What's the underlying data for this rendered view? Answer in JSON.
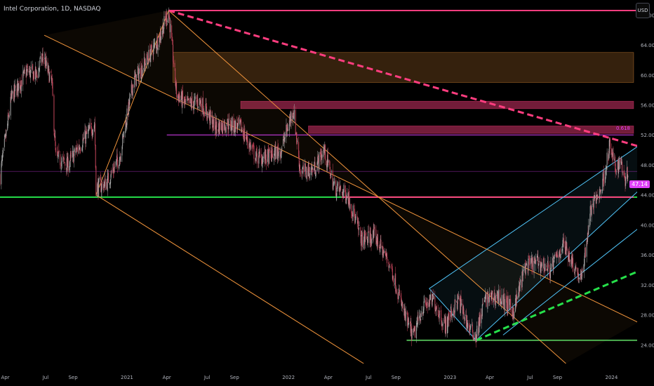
{
  "header": {
    "title": "Intel Corporation, 1D, NASDAQ",
    "currency_button": "USD"
  },
  "colors": {
    "background": "#000000",
    "up": "#a8a8a8",
    "down": "#c2455a",
    "orange": "#f0943c",
    "pink": "#ff3d7f",
    "green": "#4caf50",
    "bright_green": "#26e04a",
    "cyan": "#4fc3f7",
    "magenta": "#e040fb",
    "axis_text": "#b2b5be"
  },
  "chart_data": {
    "type": "candlestick",
    "title": "Intel Corporation, 1D, NASDAQ",
    "x_axis": {
      "start": "2020-03-20",
      "end": "2024-02-28",
      "tick_labels": [
        {
          "label": "Apr",
          "date": "2020-04-01"
        },
        {
          "label": "Jul",
          "date": "2020-07-01"
        },
        {
          "label": "Sep",
          "date": "2020-09-01"
        },
        {
          "label": "2021",
          "date": "2021-01-01"
        },
        {
          "label": "Apr",
          "date": "2021-04-01"
        },
        {
          "label": "Jul",
          "date": "2021-07-01"
        },
        {
          "label": "Sep",
          "date": "2021-09-01"
        },
        {
          "label": "2022",
          "date": "2022-01-01"
        },
        {
          "label": "Apr",
          "date": "2022-04-01"
        },
        {
          "label": "Jul",
          "date": "2022-07-01"
        },
        {
          "label": "Sep",
          "date": "2022-09-01"
        },
        {
          "label": "2023",
          "date": "2023-01-01"
        },
        {
          "label": "Apr",
          "date": "2023-04-01"
        },
        {
          "label": "Jul",
          "date": "2023-07-01"
        },
        {
          "label": "Sep",
          "date": "2023-09-01"
        },
        {
          "label": "2024",
          "date": "2024-01-01"
        }
      ]
    },
    "y_axis": {
      "range": [
        21.5,
        70
      ],
      "position": "right",
      "tick_values": [
        24,
        28,
        32,
        36,
        40,
        44,
        48,
        52,
        56,
        60,
        64,
        68
      ],
      "tick_labels": [
        "24.00",
        "28.00",
        "32.00",
        "36.00",
        "40.00",
        "44.00",
        "48.00",
        "52.00",
        "56.00",
        "60.00",
        "64.00",
        "68.00"
      ]
    },
    "price_path": [
      [
        "2020-03-20",
        46.5
      ],
      [
        "2020-04-15",
        57
      ],
      [
        "2020-05-20",
        60.5
      ],
      [
        "2020-06-10",
        60
      ],
      [
        "2020-06-25",
        62.5
      ],
      [
        "2020-07-15",
        59
      ],
      [
        "2020-07-24",
        49
      ],
      [
        "2020-08-20",
        48
      ],
      [
        "2020-09-15",
        50.5
      ],
      [
        "2020-10-20",
        53.5
      ],
      [
        "2020-10-23",
        45
      ],
      [
        "2020-11-15",
        45.5
      ],
      [
        "2020-12-15",
        49
      ],
      [
        "2021-01-15",
        59
      ],
      [
        "2021-02-15",
        62
      ],
      [
        "2021-03-15",
        65
      ],
      [
        "2021-04-05",
        68.5
      ],
      [
        "2021-04-23",
        57.5
      ],
      [
        "2021-05-15",
        56
      ],
      [
        "2021-06-15",
        56.5
      ],
      [
        "2021-07-20",
        53
      ],
      [
        "2021-08-15",
        53.5
      ],
      [
        "2021-09-15",
        53
      ],
      [
        "2021-10-20",
        49
      ],
      [
        "2021-11-15",
        49
      ],
      [
        "2021-12-15",
        50
      ],
      [
        "2022-01-12",
        55.5
      ],
      [
        "2022-01-28",
        47
      ],
      [
        "2022-03-01",
        47.5
      ],
      [
        "2022-03-22",
        50
      ],
      [
        "2022-04-15",
        45
      ],
      [
        "2022-05-15",
        44
      ],
      [
        "2022-06-15",
        38
      ],
      [
        "2022-07-15",
        38.5
      ],
      [
        "2022-08-20",
        34.5
      ],
      [
        "2022-09-20",
        28
      ],
      [
        "2022-10-10",
        25
      ],
      [
        "2022-10-31",
        29
      ],
      [
        "2022-11-25",
        30
      ],
      [
        "2022-12-20",
        26.5
      ],
      [
        "2023-01-20",
        30
      ],
      [
        "2023-02-15",
        26
      ],
      [
        "2023-03-01",
        25.2
      ],
      [
        "2023-03-20",
        30
      ],
      [
        "2023-04-20",
        30.5
      ],
      [
        "2023-05-25",
        28.5
      ],
      [
        "2023-06-20",
        34.5
      ],
      [
        "2023-07-20",
        35
      ],
      [
        "2023-08-15",
        34
      ],
      [
        "2023-09-15",
        37.5
      ],
      [
        "2023-10-25",
        32.5
      ],
      [
        "2023-11-15",
        42
      ],
      [
        "2023-12-10",
        45
      ],
      [
        "2023-12-28",
        50.5
      ],
      [
        "2024-01-10",
        47.5
      ],
      [
        "2024-01-22",
        48.5
      ],
      [
        "2024-02-02",
        46
      ],
      [
        "2024-02-07",
        47.1
      ]
    ],
    "last_price": {
      "value": 47.14,
      "label": "47.14"
    },
    "fib_level": {
      "label": "0.618",
      "value": 52.1
    },
    "horizontal_lines": [
      {
        "value": 68.6,
        "from": "2021-04-05",
        "color": "pink"
      },
      {
        "value": 43.7,
        "from": "2020-03-20",
        "color": "bright_green"
      },
      {
        "value": 43.7,
        "from": "2022-05-01",
        "to": "2024-02-20",
        "color": "pink"
      },
      {
        "value": 24.6,
        "from": "2022-09-25",
        "color": "green"
      },
      {
        "value": 52.0,
        "from": "2021-04-01",
        "to": "2024-02-20",
        "color": "magenta"
      },
      {
        "value": 47.14,
        "from": "2020-03-20",
        "color": "magenta",
        "style": "thin"
      }
    ],
    "zones": [
      {
        "from": "2021-04-15",
        "to": "2024-02-20",
        "low": 59,
        "high": 63,
        "color": "orange"
      },
      {
        "from": "2021-09-15",
        "to": "2024-02-20",
        "low": 55.5,
        "high": 56.5,
        "color": "pink"
      },
      {
        "from": "2022-02-15",
        "to": "2024-02-20",
        "low": 52.2,
        "high": 53.2,
        "color": "pink"
      }
    ],
    "trendlines": [
      {
        "from": [
          "2021-04-05",
          68.6
        ],
        "to": [
          "2024-03-01",
          50.5
        ],
        "color": "pink",
        "style": "dashed"
      },
      {
        "from": [
          "2023-03-01",
          24.6
        ],
        "to": [
          "2024-03-01",
          33.8
        ],
        "color": "bright_green",
        "style": "dashed"
      },
      {
        "from": [
          "2020-10-23",
          44
        ],
        "to": [
          "2021-04-05",
          68.6
        ],
        "color": "orange",
        "style": "solid"
      }
    ],
    "channels": [
      {
        "color": "orange",
        "lines": [
          {
            "from": [
              "2020-06-28",
              65.3
            ],
            "to": [
              "2024-03-01",
              27
            ]
          },
          {
            "from": [
              "2021-04-05",
              68.6
            ],
            "to": [
              "2023-09-20",
              21.5
            ]
          },
          {
            "from": [
              "2020-10-23",
              44
            ],
            "to": [
              "2022-06-20",
              21.5
            ]
          }
        ]
      },
      {
        "color": "cyan",
        "lines": [
          {
            "from": [
              "2022-11-15",
              31.5
            ],
            "to": [
              "2024-03-01",
              50.5
            ]
          },
          {
            "from": [
              "2023-03-01",
              24.6
            ],
            "to": [
              "2024-03-01",
              44.5
            ]
          },
          {
            "from": [
              "2023-05-01",
              25.3
            ],
            "to": [
              "2024-03-01",
              39.5
            ]
          },
          {
            "from": [
              "2022-11-15",
              31.5
            ],
            "to": [
              "2023-03-01",
              24.6
            ]
          }
        ]
      }
    ]
  }
}
